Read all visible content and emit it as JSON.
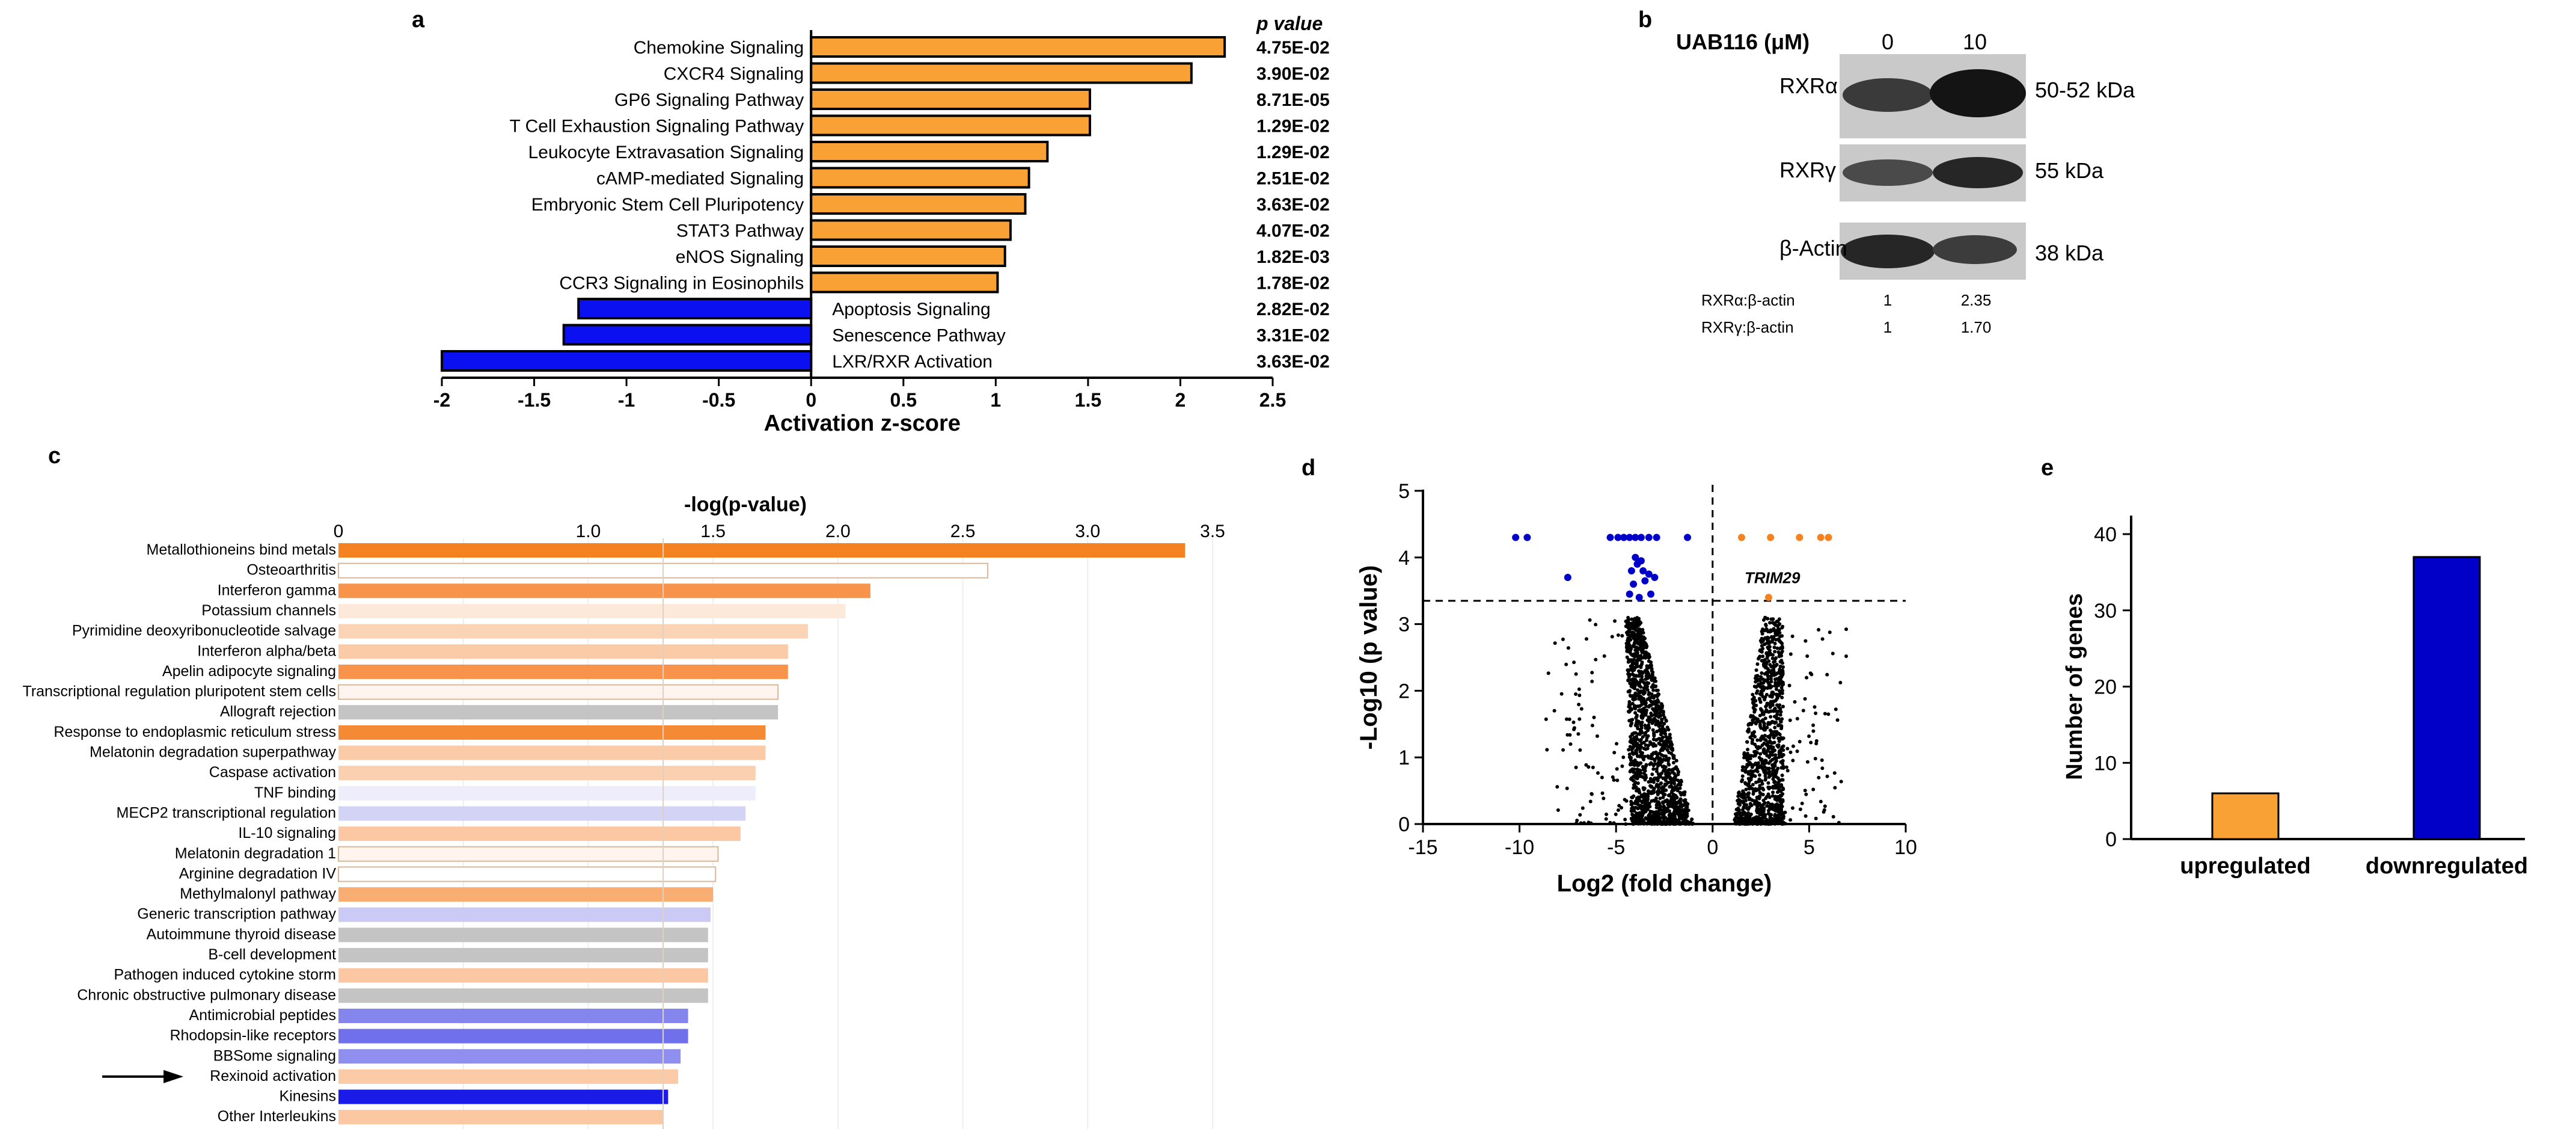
{
  "panels": {
    "a": "a",
    "b": "b",
    "c": "c",
    "d": "d",
    "e": "e"
  },
  "colors": {
    "orange": "#f9a135",
    "blue": "#0a10f0",
    "dark_orange": "#f58221",
    "dark_blue": "#0000c8",
    "gray": "#bdbdbd",
    "black": "#000000"
  },
  "blot": {
    "treatment_label": "UAB116 (μM)",
    "lanes": [
      "0",
      "10"
    ],
    "rows": [
      {
        "protein": "RXRα",
        "size": "50-52 kDa"
      },
      {
        "protein": "RXRγ",
        "size": "55 kDa"
      },
      {
        "protein": "β-Actin",
        "size": "38 kDa"
      }
    ],
    "ratios": [
      {
        "label": "RXRα:β-actin",
        "lane0": "1",
        "lane10": "2.35"
      },
      {
        "label": "RXRγ:β-actin",
        "lane0": "1",
        "lane10": "1.70"
      }
    ]
  },
  "chart_data": [
    {
      "panel": "a",
      "type": "bar",
      "orientation": "horizontal",
      "xlabel": "Activation z-score",
      "pvalue_header": "p value",
      "xlim": [
        -2,
        2.5
      ],
      "xticks": [
        "-2",
        "-1.5",
        "-1",
        "-0.5",
        "0",
        "0.5",
        "1",
        "1.5",
        "2",
        "2.5"
      ],
      "categories": [
        "Chemokine Signaling",
        "CXCR4 Signaling",
        "GP6 Signaling Pathway",
        "T Cell Exhaustion Signaling Pathway",
        "Leukocyte Extravasation Signaling",
        "cAMP-mediated Signaling",
        "Embryonic Stem Cell Pluripotency",
        "STAT3 Pathway",
        "eNOS Signaling",
        "CCR3 Signaling in Eosinophils",
        "Apoptosis Signaling",
        "Senescence Pathway",
        "LXR/RXR Activation"
      ],
      "values": [
        2.24,
        2.06,
        1.51,
        1.51,
        1.28,
        1.18,
        1.16,
        1.08,
        1.05,
        1.01,
        -1.26,
        -1.34,
        -2.0
      ],
      "p_values": [
        "4.75E-02",
        "3.90E-02",
        "8.71E-05",
        "1.29E-02",
        "1.29E-02",
        "2.51E-02",
        "3.63E-02",
        "4.07E-02",
        "1.82E-03",
        "1.78E-02",
        "2.82E-02",
        "3.31E-02",
        "3.63E-02"
      ]
    },
    {
      "panel": "c",
      "type": "bar",
      "orientation": "horizontal",
      "xlabel": "-log(p-value)",
      "xlim": [
        0,
        3.5
      ],
      "xticks": [
        "0",
        "1.0",
        "1.5",
        "2.0",
        "2.5",
        "3.0",
        "3.5"
      ],
      "threshold": 1.3,
      "categories": [
        "Metallothioneins bind metals",
        "Osteoarthritis",
        "Interferon gamma",
        "Potassium channels",
        "Pyrimidine deoxyribonucleotide salvage",
        "Interferon alpha/beta",
        "Apelin adipocyte signaling",
        "Transcriptional regulation pluripotent stem cells",
        "Allograft rejection",
        "Response to endoplasmic reticulum stress",
        "Melatonin degradation superpathway",
        "Caspase activation",
        "TNF binding",
        "MECP2 transcriptional regulation",
        "IL-10 signaling",
        "Melatonin degradation 1",
        "Arginine degradation IV",
        "Methylmalonyl pathway",
        "Generic transcription pathway",
        "Autoimmune thyroid disease",
        "B-cell development",
        "Pathogen induced cytokine storm",
        "Chronic obstructive pulmonary disease",
        "Antimicrobial peptides",
        "Rhodopsin-like receptors",
        "BBSome signaling",
        "Rexinoid activation",
        "Kinesins",
        "Other Interleukins"
      ],
      "values": [
        3.39,
        2.6,
        2.13,
        2.03,
        1.88,
        1.8,
        1.8,
        1.76,
        1.76,
        1.71,
        1.71,
        1.67,
        1.67,
        1.63,
        1.61,
        1.52,
        1.51,
        1.5,
        1.49,
        1.48,
        1.48,
        1.48,
        1.48,
        1.4,
        1.4,
        1.37,
        1.36,
        1.32,
        1.3
      ],
      "bar_colors": [
        "#f58221",
        "#ffffff",
        "#f7934a",
        "#fde9d9",
        "#fbd3b5",
        "#fbcaa6",
        "#f7934a",
        "#fff5ee",
        "#c4c4c4",
        "#f58a35",
        "#fbcaa6",
        "#fbd0b0",
        "#ededfb",
        "#d3d3f6",
        "#fbc8a3",
        "#fff5ee",
        "#ffffff",
        "#f9ad72",
        "#cacaf5",
        "#c4c4c4",
        "#c4c4c4",
        "#fbc8a3",
        "#c4c4c4",
        "#8585ee",
        "#7070ec",
        "#8f8fef",
        "#fbcaa6",
        "#1b1be8",
        "#fbc8a3"
      ],
      "highlight": "Rexinoid activation"
    },
    {
      "panel": "d",
      "type": "scatter",
      "xlabel": "Log2 (fold change)",
      "ylabel": "-Log10 (p value)",
      "xlim": [
        -15,
        10
      ],
      "ylim": [
        0,
        5
      ],
      "xticks": [
        "-15",
        "-10",
        "-5",
        "0",
        "5",
        "10"
      ],
      "yticks": [
        "0",
        "1",
        "2",
        "3",
        "4",
        "5"
      ],
      "fc_cutoffs": [
        0
      ],
      "pvalue_cutoff": 3.35,
      "annotation": {
        "label": "TRIM29",
        "x": 2.9,
        "y": 3.4
      },
      "down_genes": [
        [
          -10.2,
          4.3
        ],
        [
          -9.6,
          4.3
        ],
        [
          -5.3,
          4.3
        ],
        [
          -4.9,
          4.3
        ],
        [
          -4.6,
          4.3
        ],
        [
          -4.3,
          4.3
        ],
        [
          -4.0,
          4.3
        ],
        [
          -3.7,
          4.3
        ],
        [
          -3.3,
          4.3
        ],
        [
          -2.9,
          4.3
        ],
        [
          -1.3,
          4.3
        ],
        [
          -4.0,
          4.0
        ],
        [
          -3.9,
          3.9
        ],
        [
          -3.7,
          3.95
        ],
        [
          -4.2,
          3.8
        ],
        [
          -3.6,
          3.8
        ],
        [
          -3.3,
          3.75
        ],
        [
          -4.1,
          3.6
        ],
        [
          -3.5,
          3.65
        ],
        [
          -3.0,
          3.7
        ],
        [
          -4.3,
          3.45
        ],
        [
          -3.8,
          3.4
        ],
        [
          -3.2,
          3.45
        ],
        [
          -7.5,
          3.7
        ]
      ],
      "up_genes": [
        [
          1.5,
          4.3
        ],
        [
          3.0,
          4.3
        ],
        [
          4.5,
          4.3
        ],
        [
          5.6,
          4.3
        ],
        [
          6.0,
          4.3
        ],
        [
          2.9,
          3.4
        ]
      ]
    },
    {
      "panel": "e",
      "type": "bar",
      "ylabel": "Number of genes",
      "categories": [
        "upregulated",
        "downregulated"
      ],
      "values": [
        6,
        37
      ],
      "ylim": [
        0,
        44
      ],
      "yticks": [
        "0",
        "10",
        "20",
        "30",
        "40"
      ]
    }
  ]
}
